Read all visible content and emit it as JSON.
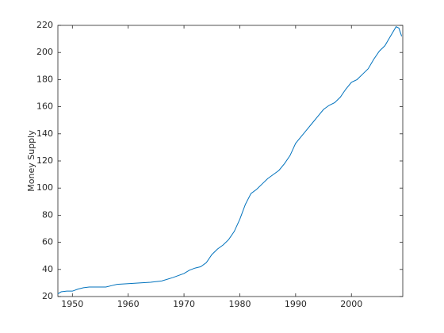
{
  "chart_data": {
    "type": "line",
    "ylabel": "Money Supply",
    "x": [
      1947.4,
      1948,
      1949,
      1950,
      1951,
      1952,
      1953,
      1955,
      1956,
      1957,
      1958,
      1960,
      1962,
      1964,
      1966,
      1968,
      1970,
      1971,
      1972,
      1973,
      1974,
      1975,
      1976,
      1977,
      1978,
      1979,
      1980,
      1981,
      1982,
      1983,
      1984,
      1985,
      1986,
      1987,
      1988,
      1989,
      1990,
      1991,
      1992,
      1993,
      1994,
      1995,
      1996,
      1997,
      1998,
      1999,
      2000,
      2001,
      2002,
      2003,
      2004,
      2005,
      2006,
      2007,
      2008,
      2008.5,
      2009
    ],
    "series": [
      {
        "color": "#0072bd",
        "values": [
          22,
          23.5,
          24,
          24,
          25.5,
          26.5,
          27,
          27,
          27,
          28,
          29,
          29.5,
          30,
          30.5,
          31.5,
          34,
          37,
          39.5,
          41,
          42,
          45,
          51,
          55,
          58,
          62,
          68,
          77,
          88,
          96,
          99,
          103,
          107,
          110,
          113,
          118,
          124,
          133,
          138,
          143,
          148,
          153,
          158,
          161,
          163,
          167,
          173,
          178,
          180,
          184,
          188,
          195,
          201,
          205,
          212,
          219,
          218,
          212
        ]
      }
    ],
    "xlim": [
      1947.4,
      2009.2
    ],
    "xticks": [
      1950,
      1960,
      1970,
      1980,
      1990,
      2000
    ],
    "ylim": [
      20,
      220
    ],
    "yticks": [
      20,
      40,
      60,
      80,
      100,
      120,
      140,
      160,
      180,
      200,
      220
    ]
  }
}
